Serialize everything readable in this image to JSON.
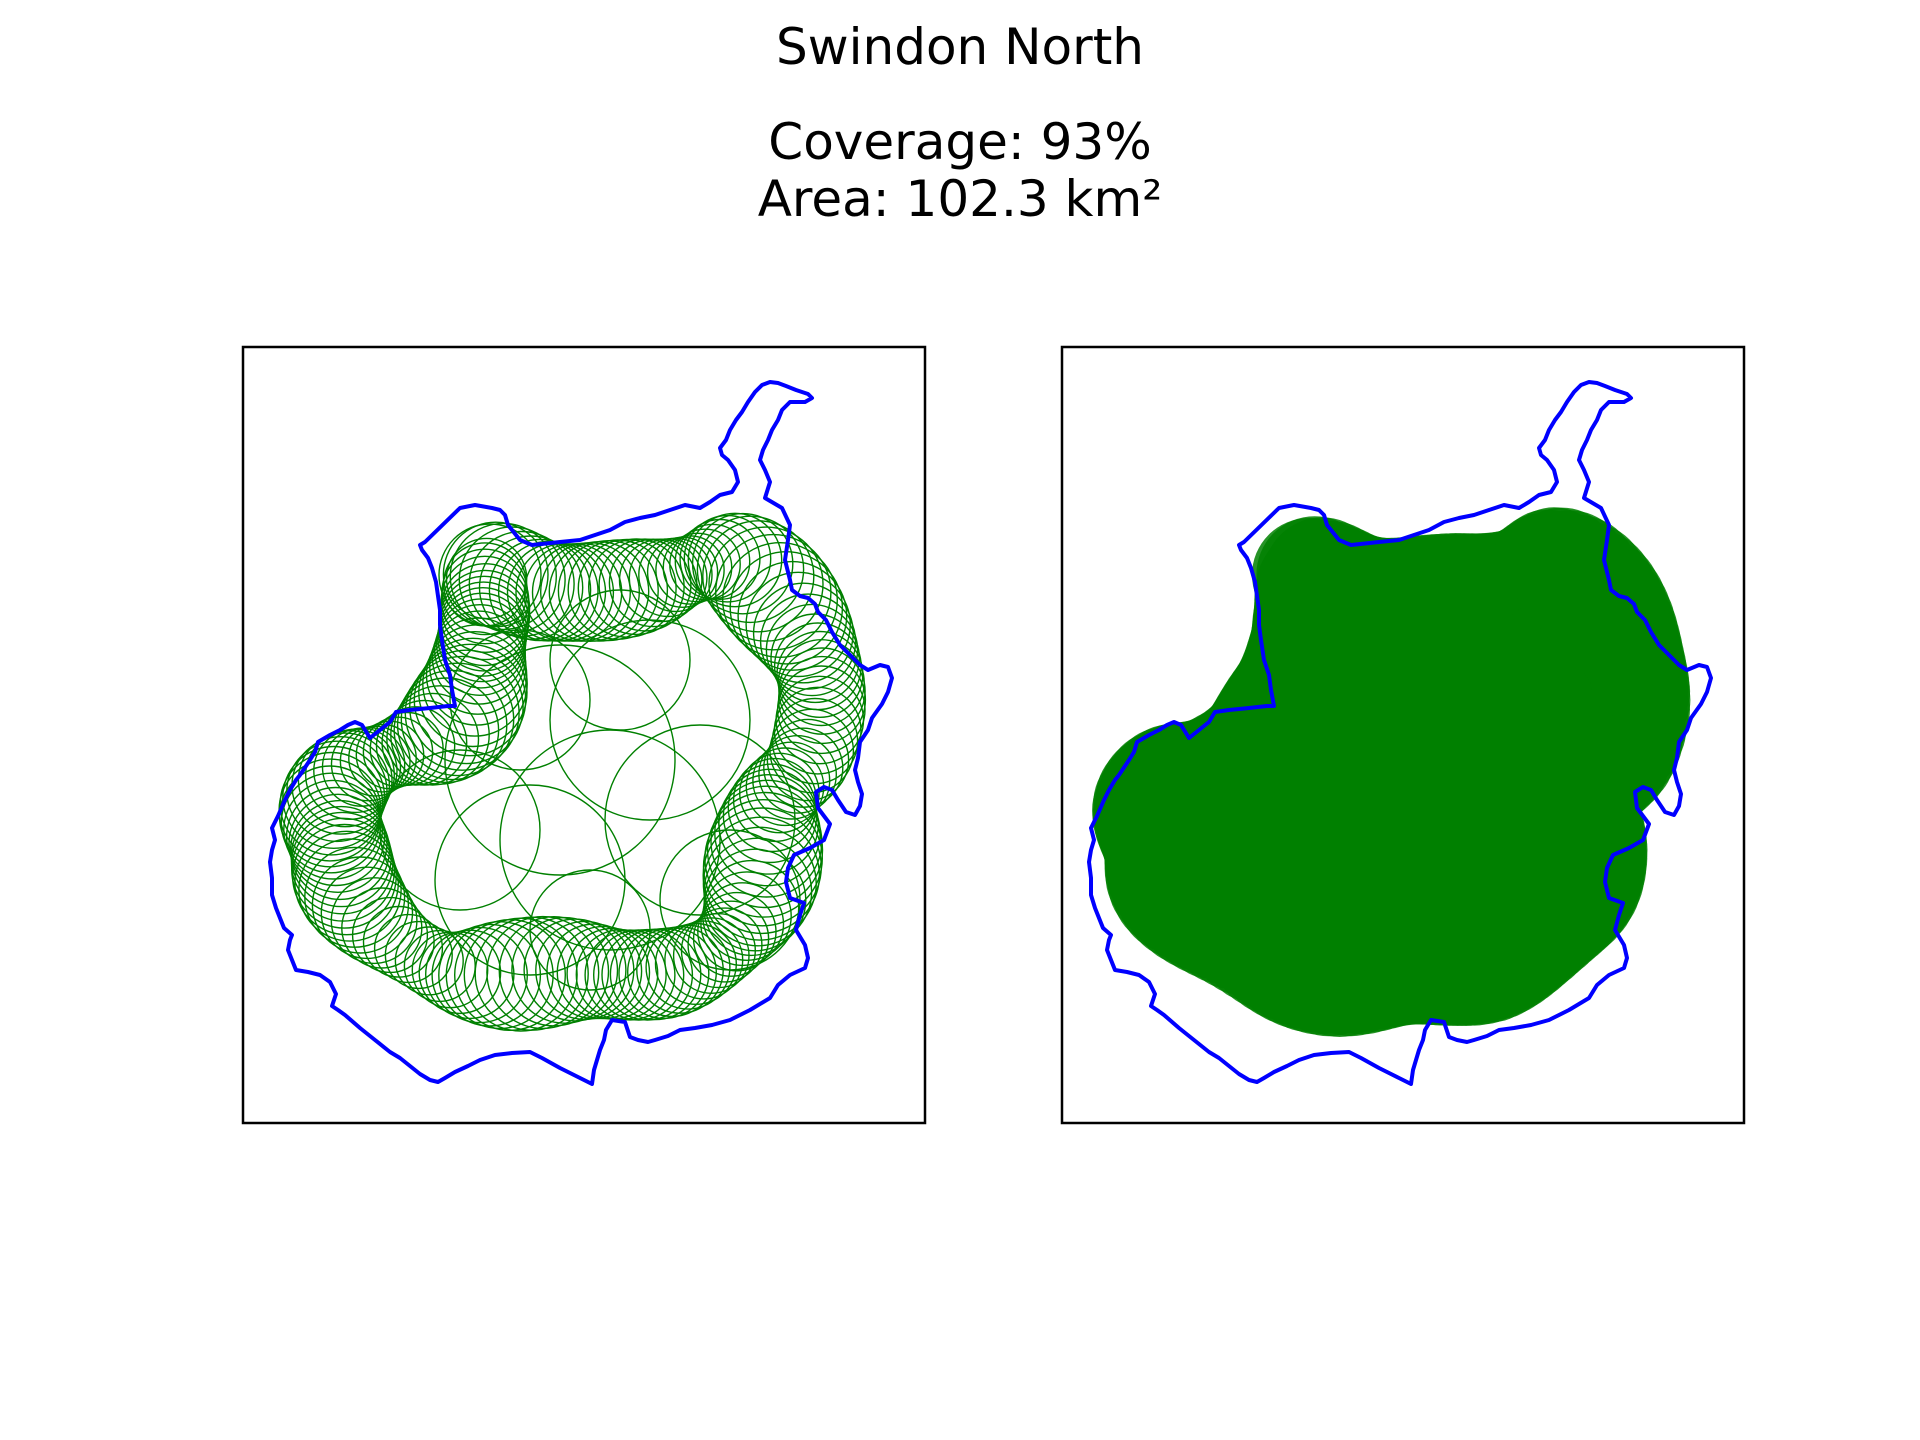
{
  "figure": {
    "title": "Swindon North",
    "coverage_text": "Coverage: 93%",
    "area_text": "Area: 102.3 km²"
  },
  "panels": [
    {
      "name": "coverage-outline-panel",
      "circle_style": "outline"
    },
    {
      "name": "coverage-filled-panel",
      "circle_style": "filled"
    }
  ],
  "colors": {
    "boundary": "#0000ff",
    "coverage": "#008000",
    "frame": "#000000",
    "background": "#ffffff"
  }
}
